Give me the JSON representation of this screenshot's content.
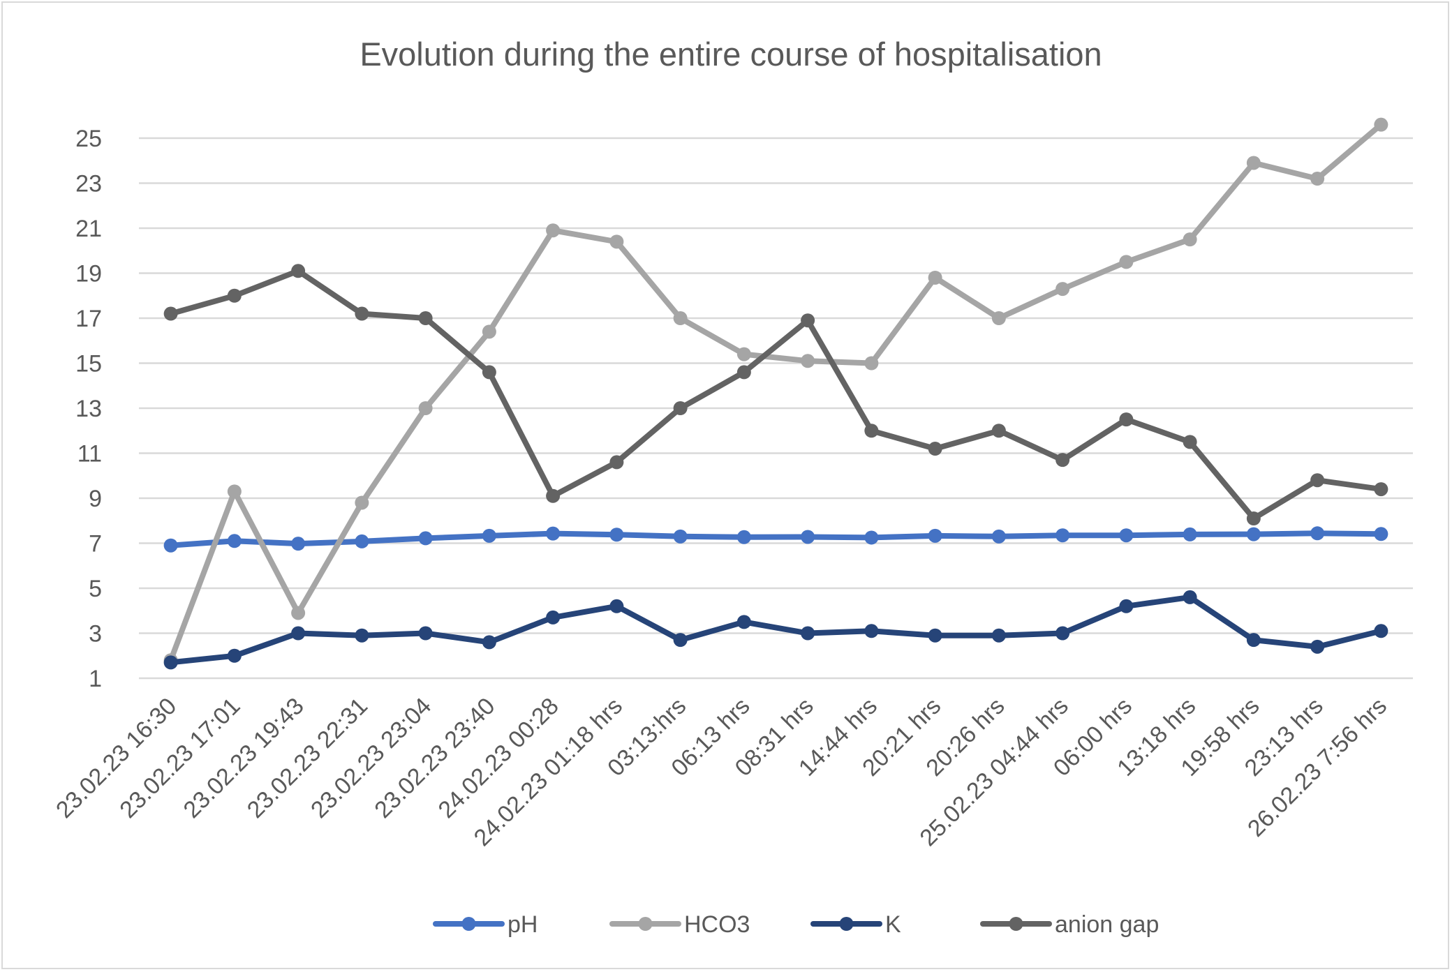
{
  "chart_data": {
    "type": "line",
    "title": "Evolution during the entire course of hospitalisation",
    "xlabel": "",
    "ylabel": "",
    "ylim": [
      1,
      25
    ],
    "yticks": [
      1,
      3,
      5,
      7,
      9,
      11,
      13,
      15,
      17,
      19,
      21,
      23,
      25
    ],
    "grid": true,
    "legend_position": "bottom",
    "categories": [
      "23.02.23 16:30",
      "23.02.23 17:01",
      "23.02.23 19:43",
      "23.02.23 22:31",
      "23.02.23 23:04",
      "23.02.23 23:40",
      "24.02.23 00:28",
      "24.02.23 01:18 hrs",
      "03:13:hrs",
      "06:13 hrs",
      "08:31 hrs",
      "14:44 hrs",
      "20:21 hrs",
      "20:26 hrs",
      "25.02.23 04:44 hrs",
      "06:00 hrs",
      "13:18 hrs",
      "19:58 hrs",
      "23:13 hrs",
      "26.02.23 7:56 hrs"
    ],
    "series": [
      {
        "name": "pH",
        "color": "#4472c4",
        "values": [
          6.9,
          7.1,
          6.98,
          7.08,
          7.22,
          7.33,
          7.43,
          7.38,
          7.3,
          7.27,
          7.28,
          7.25,
          7.33,
          7.3,
          7.35,
          7.35,
          7.39,
          7.4,
          7.44,
          7.41
        ]
      },
      {
        "name": "HCO3",
        "color": "#a5a5a5",
        "values": [
          1.8,
          9.3,
          3.9,
          8.8,
          13.0,
          16.4,
          20.9,
          20.4,
          17.0,
          15.4,
          15.1,
          15.0,
          18.8,
          17.0,
          18.3,
          19.5,
          20.5,
          23.9,
          23.2,
          25.6
        ]
      },
      {
        "name": "K",
        "color": "#264478",
        "values": [
          1.7,
          2.0,
          3.0,
          2.9,
          3.0,
          2.6,
          3.7,
          4.2,
          2.7,
          3.5,
          3.0,
          3.1,
          2.9,
          2.9,
          3.0,
          4.2,
          4.6,
          2.7,
          2.4,
          3.1
        ]
      },
      {
        "name": "anion gap",
        "color": "#636363",
        "values": [
          17.2,
          18.0,
          19.1,
          17.2,
          17.0,
          14.6,
          9.1,
          10.6,
          13.0,
          14.6,
          16.9,
          12.0,
          11.2,
          12.0,
          10.7,
          12.5,
          11.5,
          8.1,
          9.8,
          9.4
        ]
      }
    ]
  }
}
